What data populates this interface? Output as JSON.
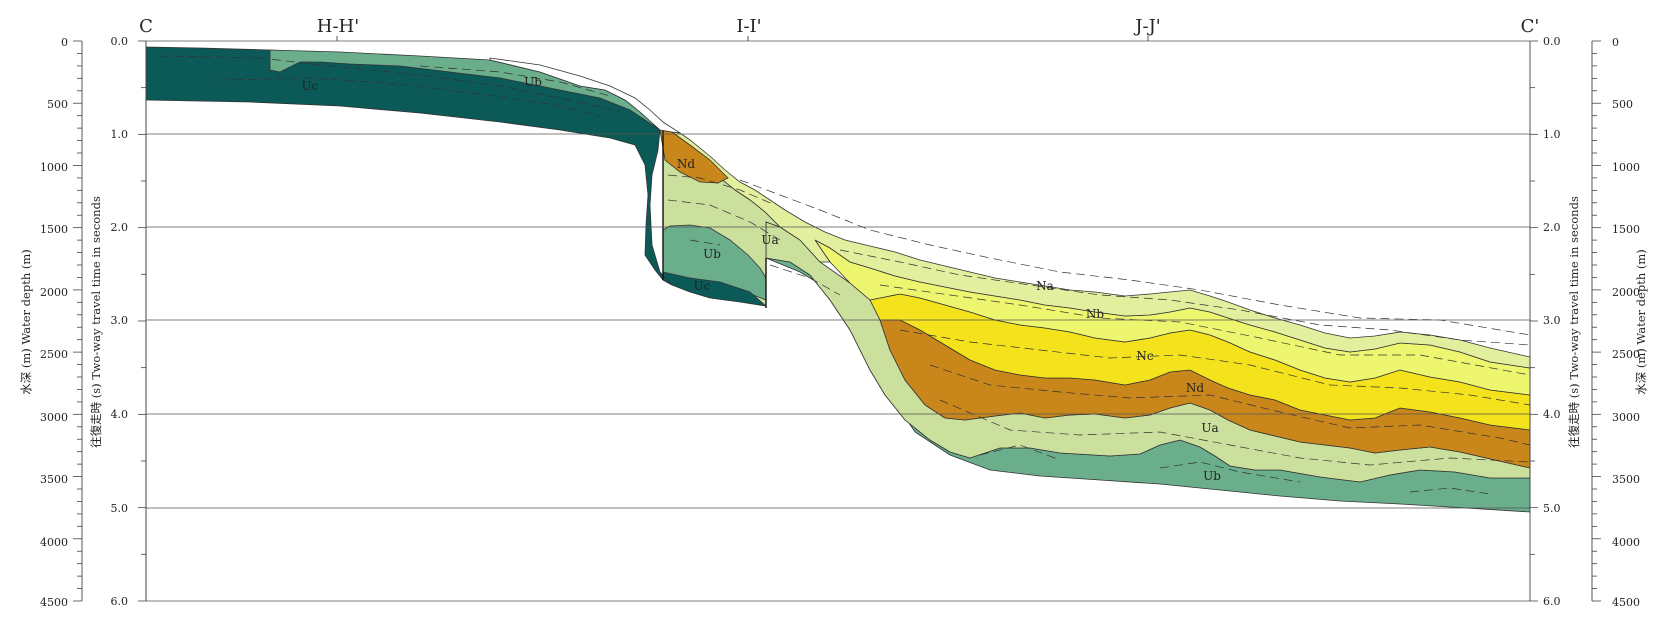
{
  "section_labels": {
    "left_end": "C",
    "tie1": "H-H'",
    "tie2": "I-I'",
    "tie3": "J-J'",
    "right_end": "C'"
  },
  "axes": {
    "depth_title_left": "水深 (m)   Water depth (m)",
    "depth_title_right": "水深 (m)   Water depth (m)",
    "time_title_left": "往復走時 (s)   Two-way travel time in seconds",
    "time_title_right": "往復走時 (s) Two-way travel time in seconds",
    "depth_ticks": [
      "0",
      "500",
      "1000",
      "1500",
      "2000",
      "2500",
      "3000",
      "3500",
      "4000",
      "4500"
    ],
    "time_ticks": [
      "0.0",
      "1.0",
      "2.0",
      "3.0",
      "4.0",
      "5.0",
      "6.0"
    ]
  },
  "units": {
    "Na": {
      "label": "Na",
      "color": "#e2ef9e"
    },
    "Nb": {
      "label": "Nb",
      "color": "#eef56e"
    },
    "Nc": {
      "label": "Nc",
      "color": "#f3e21c"
    },
    "Nd": {
      "label": "Nd",
      "color": "#c9861a"
    },
    "Ua": {
      "label": "Ua",
      "color": "#cbe09c"
    },
    "Ub": {
      "label": "Ub",
      "color": "#6aae8c"
    },
    "Uc": {
      "label": "Uc",
      "color": "#0b5a58"
    }
  },
  "unit_labels": [
    {
      "unit": "Uc",
      "text": "Uc"
    },
    {
      "unit": "Ub",
      "text": "Ub"
    },
    {
      "unit": "Nd",
      "text": "Nd"
    },
    {
      "unit": "Ub",
      "text": "Ub"
    },
    {
      "unit": "Uc",
      "text": "Uc"
    },
    {
      "unit": "Ua",
      "text": "Ua"
    },
    {
      "unit": "Na",
      "text": "Na"
    },
    {
      "unit": "Nb",
      "text": "Nb"
    },
    {
      "unit": "Nc",
      "text": "Nc"
    },
    {
      "unit": "Nd",
      "text": "Nd"
    },
    {
      "unit": "Ua",
      "text": "Ua"
    },
    {
      "unit": "Ub",
      "text": "Ub"
    }
  ]
}
